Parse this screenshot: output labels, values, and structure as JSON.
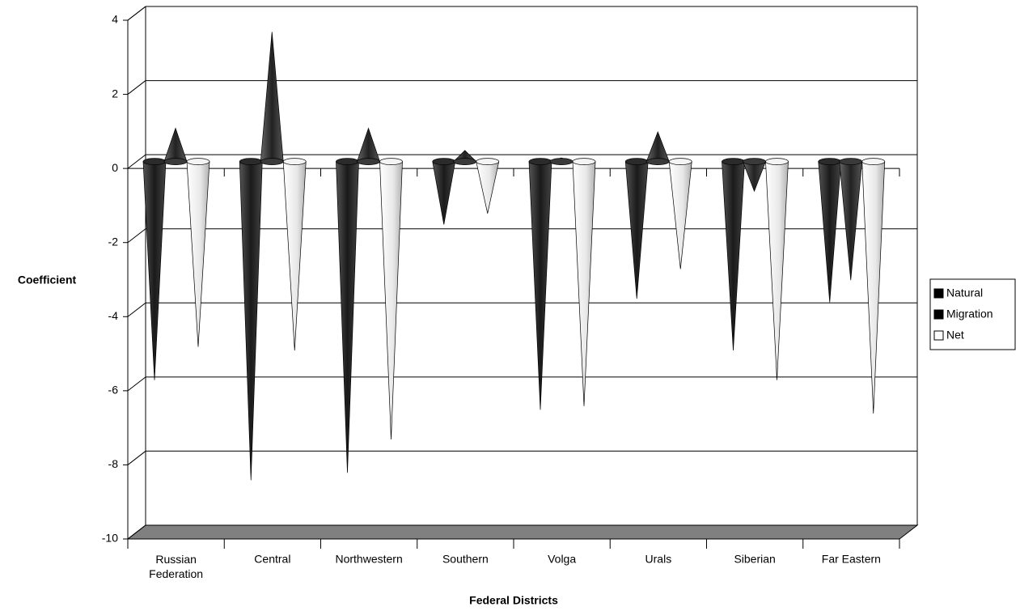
{
  "chart_data": {
    "type": "cone3d",
    "x_label": "Federal Districts",
    "y_label": "Coefficient",
    "categories": [
      "Russian Federation",
      "Central",
      "Northwestern",
      "Southern",
      "Volga",
      "Urals",
      "Siberian",
      "Far Eastern"
    ],
    "series": [
      {
        "name": "Natural",
        "color": "#2b2b2b",
        "values": [
          -5.9,
          -8.6,
          -8.4,
          -1.7,
          -6.7,
          -3.7,
          -5.1,
          -3.8
        ]
      },
      {
        "name": "Migration",
        "color": "#3a3a3a",
        "values": [
          0.9,
          3.5,
          0.9,
          0.3,
          0.1,
          0.8,
          -0.8,
          -3.2
        ]
      },
      {
        "name": "Net",
        "color": "#e6e6e6",
        "values": [
          -5.0,
          -5.1,
          -7.5,
          -1.4,
          -6.6,
          -2.9,
          -5.9,
          -6.8
        ]
      }
    ],
    "ylim": [
      -10,
      4
    ],
    "yticks": [
      -10,
      -8,
      -6,
      -4,
      -2,
      0,
      2,
      4
    ],
    "grid": true,
    "legend": "right"
  }
}
